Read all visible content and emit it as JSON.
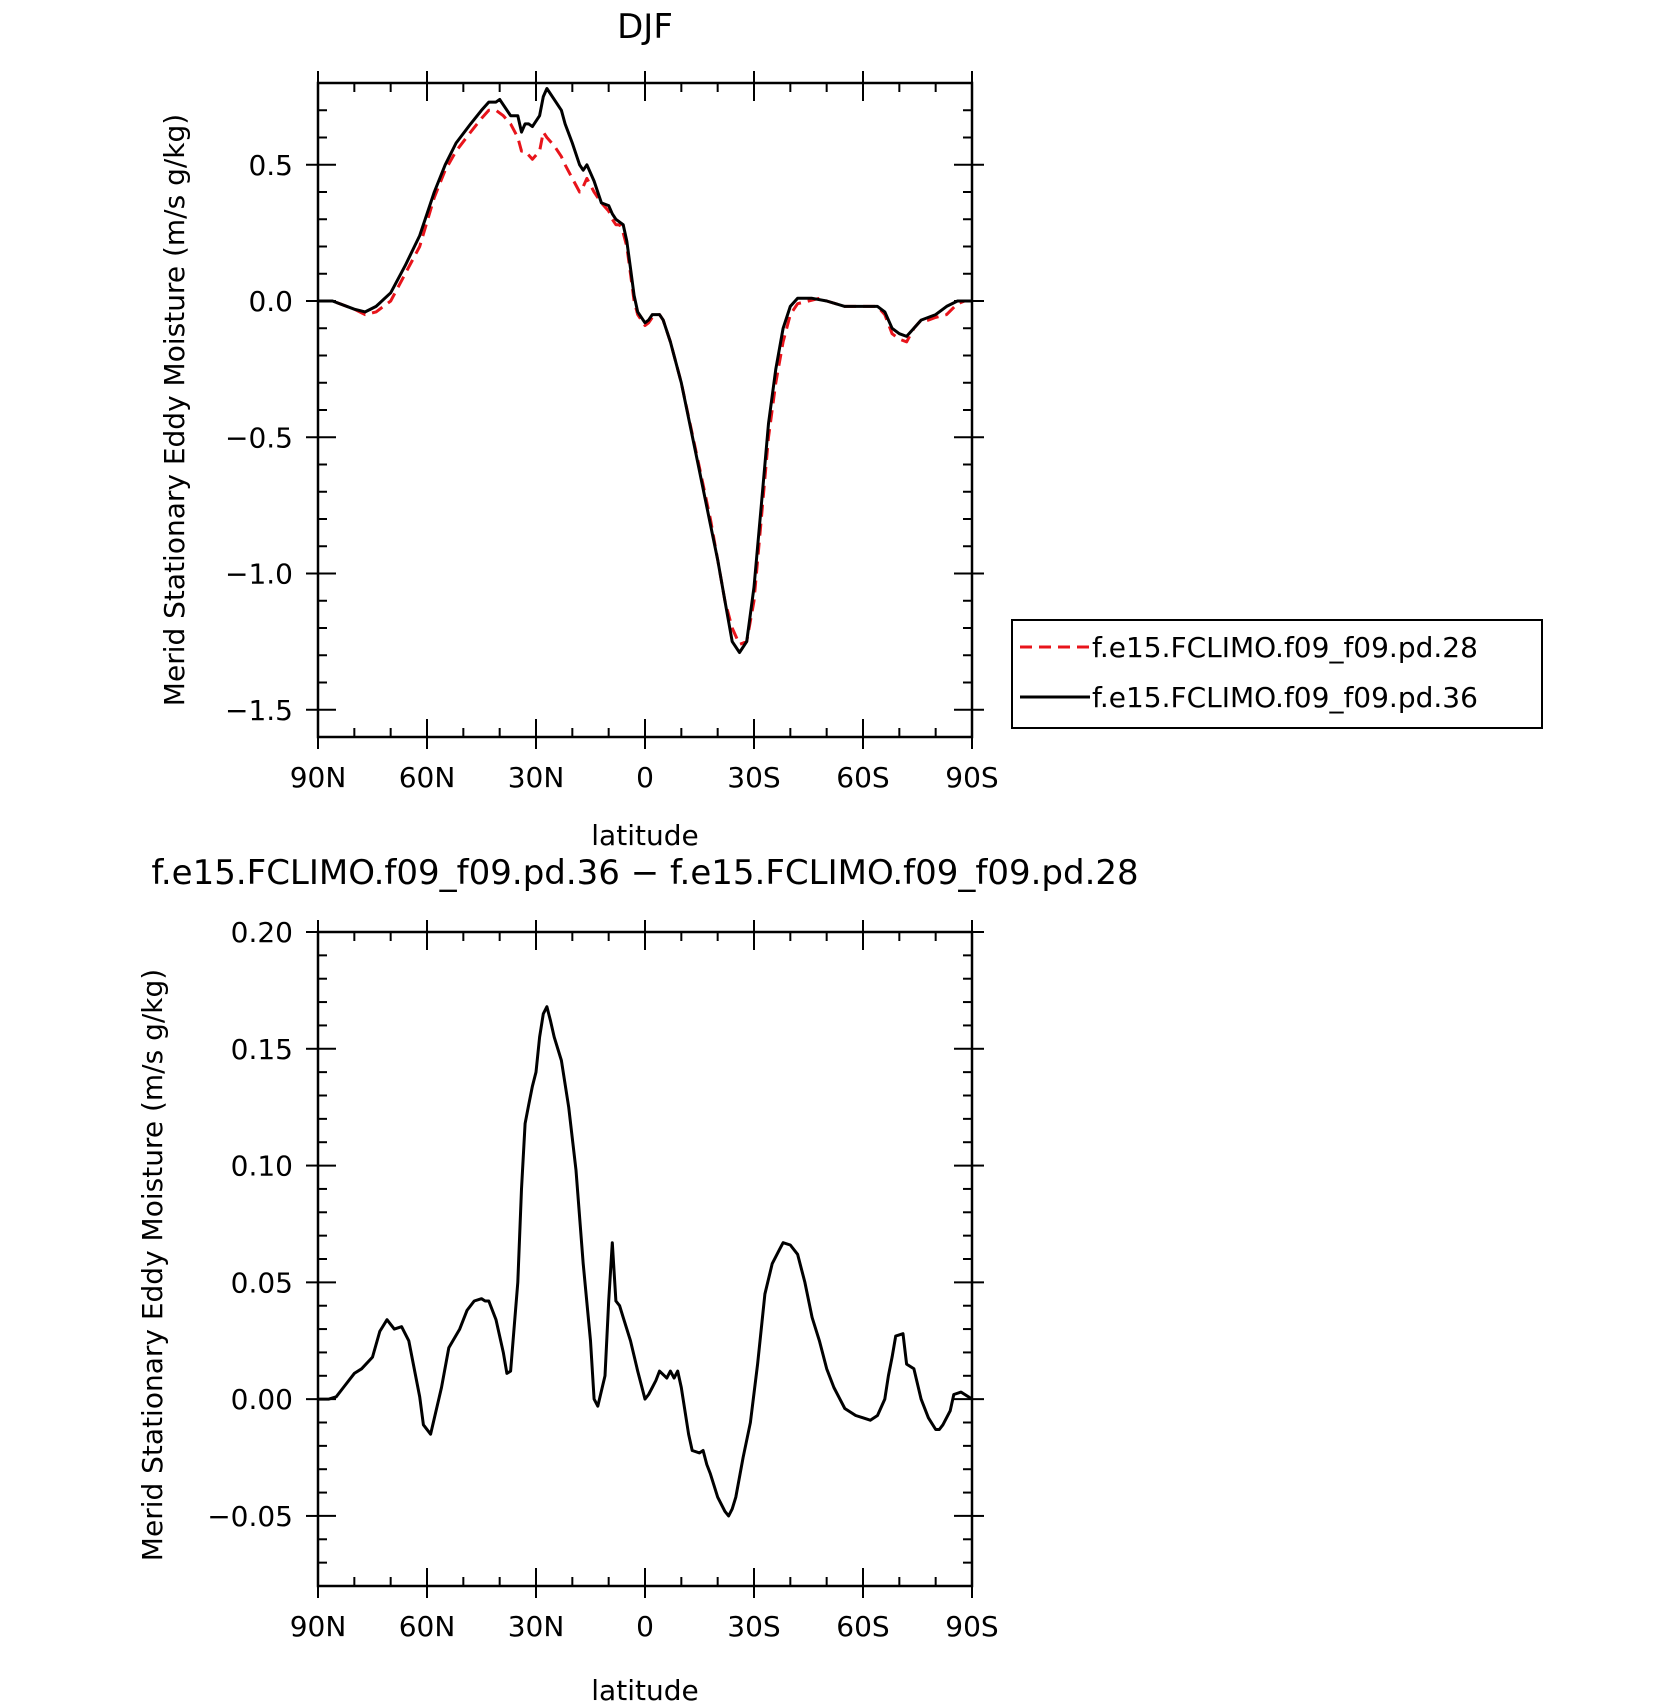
{
  "chart_data": [
    {
      "type": "line",
      "title": "DJF",
      "xlabel": "latitude",
      "ylabel": "Merid Stationary Eddy Moisture (m/s g/kg)",
      "xlim": [
        90,
        -90
      ],
      "ylim": [
        -1.6,
        0.8
      ],
      "x_ticks": [
        {
          "value": 90,
          "label": "90N"
        },
        {
          "value": 60,
          "label": "60N"
        },
        {
          "value": 30,
          "label": "30N"
        },
        {
          "value": 0,
          "label": "0"
        },
        {
          "value": -30,
          "label": "30S"
        },
        {
          "value": -60,
          "label": "60S"
        },
        {
          "value": -90,
          "label": "90S"
        }
      ],
      "y_ticks": [
        {
          "value": 0.5,
          "label": "0.5"
        },
        {
          "value": 0.0,
          "label": "0.0"
        },
        {
          "value": -0.5,
          "label": "−0.5"
        },
        {
          "value": -1.0,
          "label": "−1.0"
        },
        {
          "value": -1.5,
          "label": "−1.5"
        }
      ],
      "legend": "right",
      "series": [
        {
          "name": "f.e15.FCLIMO.f09_f09.pd.28",
          "color": "#e8141b",
          "dash": "dashed",
          "x": [
            90,
            86,
            80,
            77,
            74,
            70,
            66,
            62,
            58,
            55,
            52,
            48,
            45,
            43,
            41,
            39,
            37,
            35,
            34,
            33,
            31,
            29,
            28,
            27,
            25,
            23,
            22,
            20,
            18,
            17,
            16,
            14,
            12,
            10,
            9,
            8,
            7,
            6,
            5,
            4,
            3,
            2,
            0,
            -1,
            -2,
            -4,
            -5,
            -7,
            -10,
            -14,
            -18,
            -20,
            -22,
            -24,
            -26,
            -28,
            -30,
            -32,
            -34,
            -36,
            -38,
            -40,
            -42,
            -45,
            -48,
            -50,
            -55,
            -60,
            -64,
            -66,
            -68,
            -70,
            -72,
            -74,
            -76,
            -78,
            -80,
            -83,
            -86,
            -88,
            -90
          ],
          "y": [
            0.0,
            0.0,
            -0.03,
            -0.05,
            -0.04,
            0.0,
            0.1,
            0.2,
            0.38,
            0.48,
            0.55,
            0.62,
            0.67,
            0.7,
            0.7,
            0.68,
            0.65,
            0.6,
            0.55,
            0.55,
            0.52,
            0.55,
            0.62,
            0.6,
            0.57,
            0.53,
            0.5,
            0.45,
            0.4,
            0.42,
            0.45,
            0.4,
            0.36,
            0.33,
            0.3,
            0.28,
            0.28,
            0.25,
            0.2,
            0.1,
            0.0,
            -0.05,
            -0.09,
            -0.08,
            -0.06,
            -0.05,
            -0.07,
            -0.15,
            -0.3,
            -0.55,
            -0.8,
            -0.95,
            -1.1,
            -1.2,
            -1.26,
            -1.25,
            -1.1,
            -0.8,
            -0.5,
            -0.3,
            -0.15,
            -0.05,
            -0.01,
            0.0,
            0.01,
            0.0,
            -0.02,
            -0.02,
            -0.02,
            -0.05,
            -0.12,
            -0.14,
            -0.15,
            -0.1,
            -0.07,
            -0.07,
            -0.06,
            -0.05,
            -0.01,
            0.0,
            0.0
          ]
        },
        {
          "name": "f.e15.FCLIMO.f09_f09.pd.36",
          "color": "#000000",
          "dash": "solid",
          "x": [
            90,
            86,
            80,
            77,
            74,
            70,
            66,
            62,
            58,
            55,
            52,
            48,
            45,
            43,
            41,
            40,
            39,
            37,
            35,
            34,
            33,
            32,
            31,
            29,
            28,
            27,
            25,
            23,
            22,
            20,
            18,
            17,
            16,
            14,
            12,
            10,
            9,
            8,
            6,
            5,
            4,
            3,
            2,
            0,
            -1,
            -2,
            -4,
            -5,
            -7,
            -10,
            -14,
            -18,
            -20,
            -22,
            -24,
            -26,
            -28,
            -30,
            -32,
            -34,
            -36,
            -38,
            -40,
            -42,
            -44,
            -46,
            -50,
            -55,
            -60,
            -64,
            -66,
            -68,
            -70,
            -72,
            -74,
            -76,
            -78,
            -80,
            -83,
            -86,
            -88,
            -90
          ],
          "y": [
            0.0,
            0.0,
            -0.03,
            -0.04,
            -0.02,
            0.03,
            0.13,
            0.24,
            0.4,
            0.5,
            0.58,
            0.65,
            0.7,
            0.73,
            0.73,
            0.74,
            0.72,
            0.68,
            0.68,
            0.62,
            0.65,
            0.65,
            0.64,
            0.68,
            0.75,
            0.78,
            0.74,
            0.7,
            0.65,
            0.58,
            0.5,
            0.48,
            0.5,
            0.44,
            0.36,
            0.35,
            0.32,
            0.3,
            0.28,
            0.22,
            0.12,
            0.02,
            -0.04,
            -0.08,
            -0.07,
            -0.05,
            -0.05,
            -0.07,
            -0.15,
            -0.3,
            -0.56,
            -0.82,
            -0.95,
            -1.1,
            -1.25,
            -1.29,
            -1.25,
            -1.05,
            -0.75,
            -0.45,
            -0.25,
            -0.1,
            -0.02,
            0.01,
            0.01,
            0.01,
            0.0,
            -0.02,
            -0.02,
            -0.02,
            -0.04,
            -0.1,
            -0.12,
            -0.13,
            -0.1,
            -0.07,
            -0.06,
            -0.05,
            -0.02,
            0.0,
            0.0,
            0.0
          ]
        }
      ]
    },
    {
      "type": "line",
      "title": "f.e15.FCLIMO.f09_f09.pd.36 − f.e15.FCLIMO.f09_f09.pd.28",
      "xlabel": "latitude",
      "ylabel": "Merid Stationary Eddy Moisture (m/s g/kg)",
      "xlim": [
        90,
        -90
      ],
      "ylim": [
        -0.08,
        0.2
      ],
      "x_ticks": [
        {
          "value": 90,
          "label": "90N"
        },
        {
          "value": 60,
          "label": "60N"
        },
        {
          "value": 30,
          "label": "30N"
        },
        {
          "value": 0,
          "label": "0"
        },
        {
          "value": -30,
          "label": "30S"
        },
        {
          "value": -60,
          "label": "60S"
        },
        {
          "value": -90,
          "label": "90S"
        }
      ],
      "y_ticks": [
        {
          "value": 0.2,
          "label": "0.20"
        },
        {
          "value": 0.15,
          "label": "0.15"
        },
        {
          "value": 0.1,
          "label": "0.10"
        },
        {
          "value": 0.05,
          "label": "0.05"
        },
        {
          "value": 0.0,
          "label": "0.00"
        },
        {
          "value": -0.05,
          "label": "−0.05"
        }
      ],
      "series": [
        {
          "name": "",
          "color": "#000000",
          "dash": "solid",
          "x": [
            90,
            87,
            85,
            83,
            80,
            78,
            75,
            73,
            71,
            69,
            67,
            65,
            62,
            61,
            59,
            56,
            54,
            51,
            49,
            47,
            45,
            44,
            43,
            41,
            39,
            38,
            37,
            35,
            34,
            33,
            32,
            31,
            30,
            29,
            28,
            27,
            26,
            25,
            23,
            21,
            19,
            17,
            15,
            14,
            13,
            11,
            10,
            9,
            8,
            7,
            6,
            4,
            2,
            0,
            -1,
            -2,
            -3,
            -4,
            -6,
            -7,
            -8,
            -9,
            -10,
            -12,
            -13,
            -15,
            -16,
            -17,
            -18,
            -20,
            -22,
            -23,
            -24,
            -25,
            -27,
            -29,
            -31,
            -33,
            -35,
            -37,
            -38,
            -40,
            -42,
            -44,
            -46,
            -48,
            -50,
            -52,
            -55,
            -58,
            -60,
            -62,
            -64,
            -66,
            -67,
            -68,
            -69,
            -71,
            -72,
            -74,
            -76,
            -78,
            -80,
            -81,
            -82,
            -84,
            -85,
            -87,
            -89,
            -90
          ],
          "y": [
            0.0,
            0.0,
            0.001,
            0.005,
            0.011,
            0.013,
            0.018,
            0.029,
            0.034,
            0.03,
            0.031,
            0.025,
            0.001,
            -0.011,
            -0.015,
            0.005,
            0.022,
            0.03,
            0.038,
            0.042,
            0.043,
            0.042,
            0.042,
            0.034,
            0.02,
            0.011,
            0.012,
            0.05,
            0.09,
            0.118,
            0.126,
            0.134,
            0.14,
            0.155,
            0.165,
            0.168,
            0.162,
            0.155,
            0.145,
            0.125,
            0.098,
            0.058,
            0.025,
            0.0,
            -0.003,
            0.01,
            0.042,
            0.067,
            0.042,
            0.04,
            0.035,
            0.025,
            0.012,
            0.0,
            0.002,
            0.005,
            0.008,
            0.012,
            0.009,
            0.012,
            0.009,
            0.012,
            0.005,
            -0.015,
            -0.022,
            -0.023,
            -0.022,
            -0.028,
            -0.032,
            -0.042,
            -0.048,
            -0.05,
            -0.047,
            -0.042,
            -0.025,
            -0.01,
            0.015,
            0.045,
            0.058,
            0.064,
            0.067,
            0.066,
            0.062,
            0.05,
            0.035,
            0.025,
            0.013,
            0.005,
            -0.004,
            -0.007,
            -0.008,
            -0.009,
            -0.007,
            0.0,
            0.01,
            0.018,
            0.027,
            0.028,
            0.015,
            0.013,
            0.0,
            -0.008,
            -0.013,
            -0.013,
            -0.011,
            -0.005,
            0.002,
            0.003,
            0.001,
            0.0
          ]
        }
      ]
    }
  ]
}
